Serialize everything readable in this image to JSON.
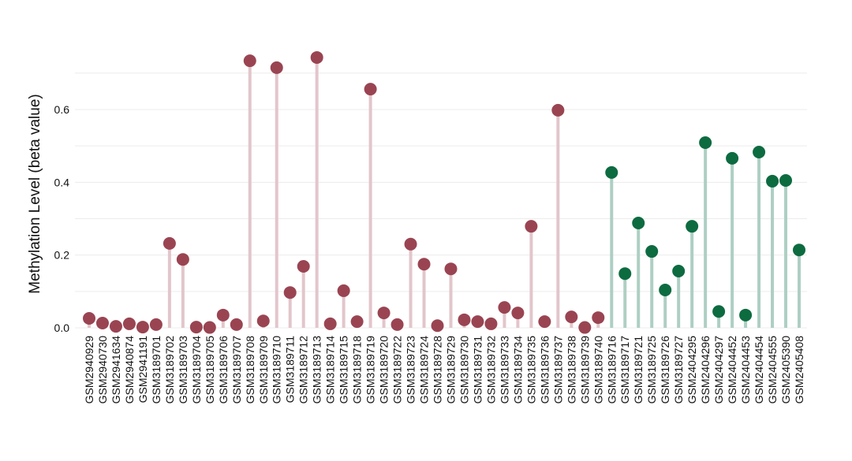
{
  "chart_data": {
    "type": "lollipop",
    "title": "",
    "xlabel": "",
    "ylabel": "Methylation Level (beta value)",
    "ylim": [
      -0.01,
      0.76
    ],
    "yticks": [
      0.0,
      0.2,
      0.4,
      0.6
    ],
    "grid": true,
    "colors": {
      "group_a_point": "#9a4452",
      "group_a_stem": "#e2c6cc",
      "group_b_point": "#0d6b40",
      "group_b_stem": "#aecfc3",
      "grid": "#ececec"
    },
    "categories": [
      "GSM2940929",
      "GSM2940730",
      "GSM2941634",
      "GSM2940874",
      "GSM2941191",
      "GSM3189701",
      "GSM3189702",
      "GSM3189703",
      "GSM3189704",
      "GSM3189705",
      "GSM3189706",
      "GSM3189707",
      "GSM3189708",
      "GSM3189709",
      "GSM3189710",
      "GSM3189711",
      "GSM3189712",
      "GSM3189713",
      "GSM3189714",
      "GSM3189715",
      "GSM3189718",
      "GSM3189719",
      "GSM3189720",
      "GSM3189722",
      "GSM3189723",
      "GSM3189724",
      "GSM3189728",
      "GSM3189729",
      "GSM3189730",
      "GSM3189731",
      "GSM3189732",
      "GSM3189733",
      "GSM3189734",
      "GSM3189735",
      "GSM3189736",
      "GSM3189737",
      "GSM3189738",
      "GSM3189739",
      "GSM3189740",
      "GSM3189716",
      "GSM3189717",
      "GSM3189721",
      "GSM3189725",
      "GSM3189726",
      "GSM3189727",
      "GSM2404295",
      "GSM2404296",
      "GSM2404297",
      "GSM2404452",
      "GSM2404453",
      "GSM2404454",
      "GSM2404555",
      "GSM2405390",
      "GSM2405408"
    ],
    "values": [
      0.026,
      0.013,
      0.004,
      0.011,
      0.002,
      0.009,
      0.232,
      0.188,
      0.002,
      0.001,
      0.035,
      0.009,
      0.734,
      0.019,
      0.715,
      0.097,
      0.169,
      0.743,
      0.011,
      0.102,
      0.017,
      0.656,
      0.041,
      0.009,
      0.23,
      0.175,
      0.006,
      0.162,
      0.022,
      0.017,
      0.011,
      0.056,
      0.041,
      0.279,
      0.017,
      0.598,
      0.03,
      0.001,
      0.028,
      0.427,
      0.149,
      0.288,
      0.21,
      0.104,
      0.156,
      0.279,
      0.509,
      0.045,
      0.466,
      0.035,
      0.483,
      0.403,
      0.405,
      0.214
    ],
    "groups": [
      "a",
      "a",
      "a",
      "a",
      "a",
      "a",
      "a",
      "a",
      "a",
      "a",
      "a",
      "a",
      "a",
      "a",
      "a",
      "a",
      "a",
      "a",
      "a",
      "a",
      "a",
      "a",
      "a",
      "a",
      "a",
      "a",
      "a",
      "a",
      "a",
      "a",
      "a",
      "a",
      "a",
      "a",
      "a",
      "a",
      "a",
      "a",
      "a",
      "b",
      "b",
      "b",
      "b",
      "b",
      "b",
      "b",
      "b",
      "b",
      "b",
      "b",
      "b",
      "b",
      "b",
      "b"
    ]
  }
}
